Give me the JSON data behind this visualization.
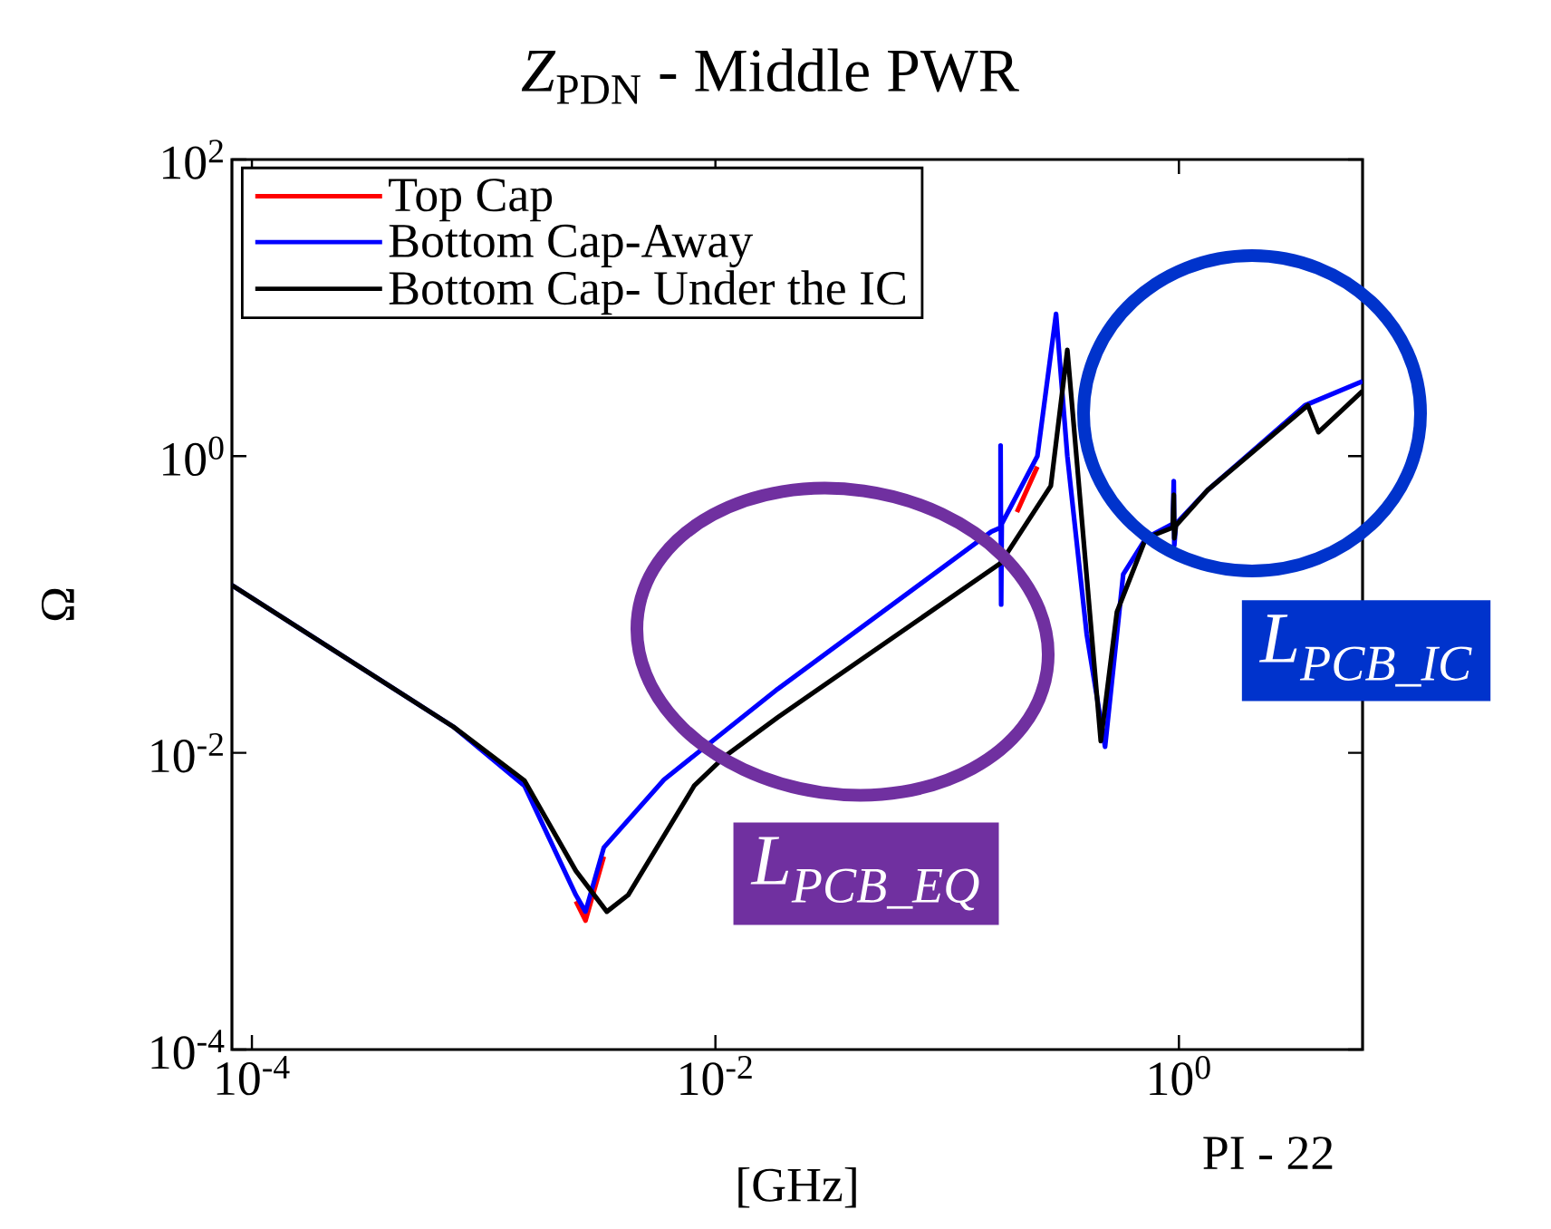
{
  "chart_data": {
    "type": "line",
    "title": "*Z*$_{PDN}$ - Middle PWR",
    "xlabel": "[GHz]",
    "ylabel": "Ω",
    "log": "xy",
    "legend": "top left",
    "xlim": [
      8.2e-05,
      6.2
    ],
    "ylim": [
      0.0001,
      100
    ],
    "xticks": [
      {
        "value": 0.0001,
        "label": "10$^{-4}$"
      },
      {
        "value": 0.01,
        "label": "10$^{-2}$"
      },
      {
        "value": 1,
        "label": "10$^{0}$"
      }
    ],
    "yticks": [
      {
        "value": 0.0001,
        "label": "10$^{-4}$"
      },
      {
        "value": 0.01,
        "label": "10$^{-2}$"
      },
      {
        "value": 1,
        "label": "10$^{0}$"
      },
      {
        "value": 100,
        "label": "10$^{2}$"
      }
    ],
    "series": [
      {
        "name": "Top Cap",
        "color": "#ff0000",
        "x": [
          0.0025,
          0.00275,
          0.0033,
          0.1,
          0.2,
          0.245
        ],
        "values": [
          0.001,
          0.00074,
          0.002,
          null,
          0.42,
          0.85
        ]
      },
      {
        "name": "Bottom Cap-Away",
        "color": "#0000ff",
        "x": [
          8.2e-05,
          0.00074,
          0.0015,
          0.0025,
          0.00275,
          0.0033,
          0.006,
          0.0186,
          0.155,
          0.17,
          0.17,
          0.171,
          0.172,
          0.245,
          0.295,
          0.33,
          0.4,
          0.48,
          0.575,
          0.72,
          0.94,
          0.95,
          0.955,
          0.97,
          1.33,
          3.5,
          6.2
        ],
        "values": [
          0.135,
          0.015,
          0.006,
          0.0011,
          0.00085,
          0.0023,
          0.0066,
          0.027,
          0.31,
          0.33,
          1.18,
          0.1,
          0.35,
          1.0,
          9.1,
          1.0,
          0.063,
          0.011,
          0.16,
          0.28,
          0.35,
          0.68,
          0.25,
          0.35,
          0.59,
          2.2,
          3.2
        ]
      },
      {
        "name": "Bottom Cap- Under the IC",
        "color": "#000000",
        "x": [
          8.2e-05,
          0.00074,
          0.0015,
          0.0025,
          0.0034,
          0.0042,
          0.0081,
          0.011,
          0.0186,
          0.17,
          0.28,
          0.33,
          0.46,
          0.54,
          0.72,
          0.94,
          0.95,
          0.955,
          0.97,
          1.33,
          3.6,
          4.0,
          6.2
        ],
        "values": [
          0.135,
          0.015,
          0.0065,
          0.0016,
          0.00085,
          0.0011,
          0.006,
          0.0095,
          0.0174,
          0.19,
          0.63,
          5.2,
          0.012,
          0.089,
          0.28,
          0.33,
          0.55,
          0.28,
          0.34,
          0.59,
          2.2,
          1.45,
          2.75
        ]
      }
    ],
    "annotations": [
      "L$_{PCB_EQ}$",
      "L$_{PCB_IC}$",
      "PI - 22"
    ]
  }
}
